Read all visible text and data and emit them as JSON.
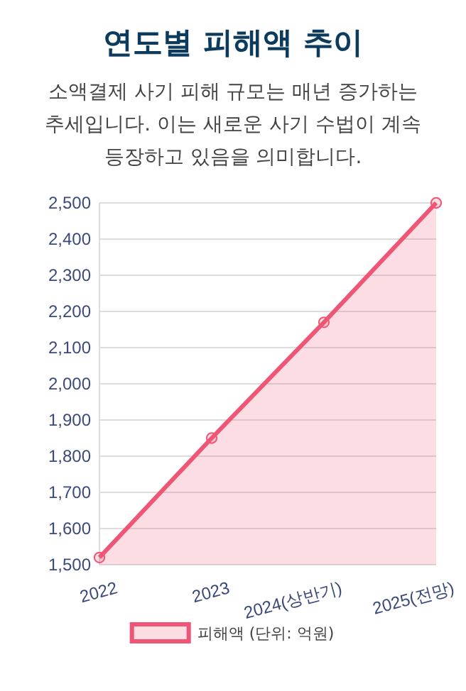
{
  "chart_data": {
    "type": "area",
    "title": "연도별 피해액 추이",
    "subtitle": "소액결제 사기 피해 규모는 매년 증가하는 추세입니다. 이는 새로운 사기 수법이 계속 등장하고 있음을 의미합니다.",
    "categories": [
      "2022",
      "2023",
      "2024(상반기)",
      "2025(전망)"
    ],
    "series": [
      {
        "name": "피해액 (단위: 억원)",
        "color": "#ef5675",
        "values": [
          1520,
          1850,
          2170,
          2500
        ]
      }
    ],
    "ylim": [
      1500,
      2500
    ],
    "yticks": [
      {
        "value": 1500,
        "label": "1,500"
      },
      {
        "value": 1600,
        "label": "1,600"
      },
      {
        "value": 1700,
        "label": "1,700"
      },
      {
        "value": 1800,
        "label": "1,800"
      },
      {
        "value": 1900,
        "label": "1,900"
      },
      {
        "value": 2000,
        "label": "2,000"
      },
      {
        "value": 2100,
        "label": "2,100"
      },
      {
        "value": 2200,
        "label": "2,200"
      },
      {
        "value": 2300,
        "label": "2,300"
      },
      {
        "value": 2400,
        "label": "2,400"
      },
      {
        "value": 2500,
        "label": "2,500"
      }
    ],
    "grid": "y",
    "legend": "bottom",
    "marker": "circle"
  }
}
